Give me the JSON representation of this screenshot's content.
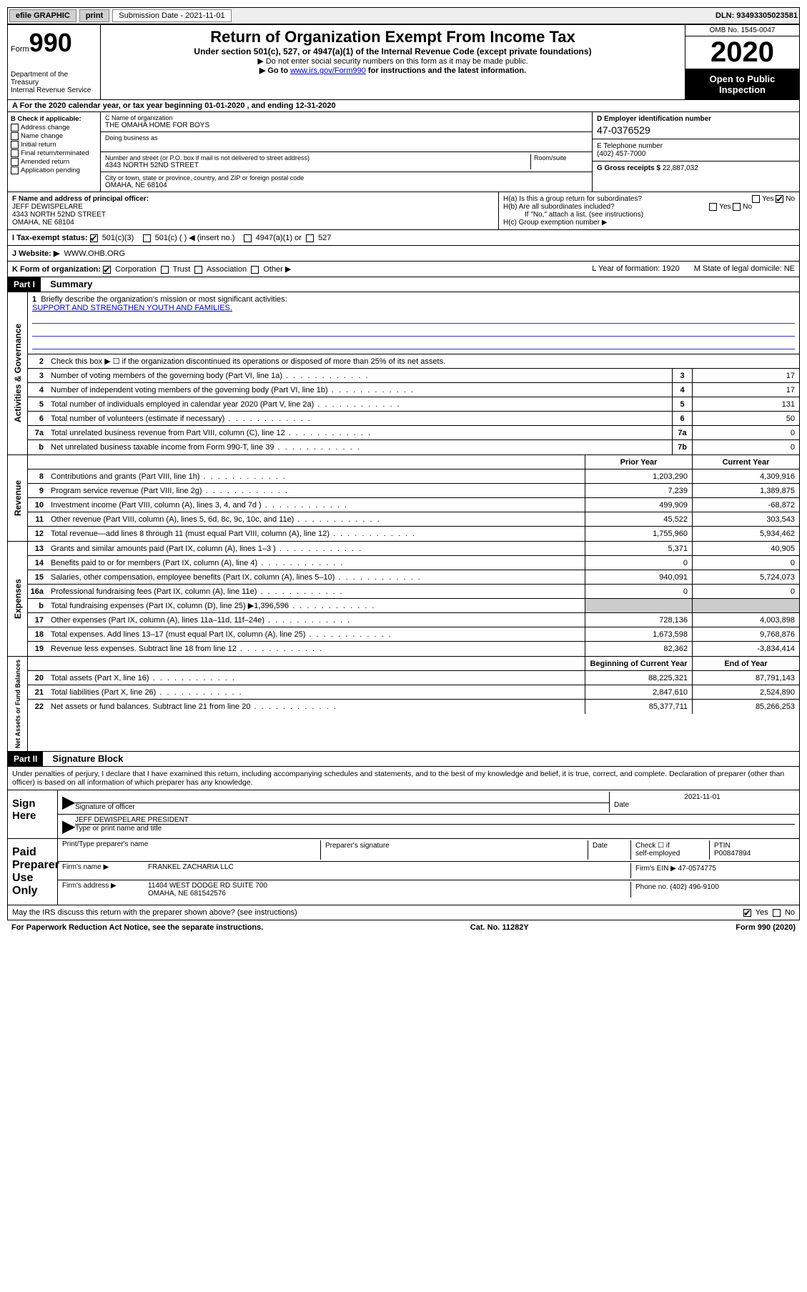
{
  "toolbar": {
    "efile": "efile GRAPHIC",
    "print": "print",
    "subdate_label": "Submission Date - 2021-11-01",
    "dln": "DLN: 93493305023581"
  },
  "header": {
    "form_prefix": "Form",
    "form_num": "990",
    "dept": "Department of the Treasury",
    "irs": "Internal Revenue Service",
    "title": "Return of Organization Exempt From Income Tax",
    "sub1": "Under section 501(c), 527, or 4947(a)(1) of the Internal Revenue Code (except private foundations)",
    "sub2": "▶ Do not enter social security numbers on this form as it may be made public.",
    "sub3a": "▶ Go to ",
    "sub3link": "www.irs.gov/Form990",
    "sub3b": " for instructions and the latest information.",
    "omb": "OMB No. 1545-0047",
    "year": "2020",
    "open": "Open to Public Inspection"
  },
  "rowA": "A For the 2020 calendar year, or tax year beginning 01-01-2020   , and ending 12-31-2020",
  "sectionB": {
    "label": "B Check if applicable:",
    "opts": [
      "Address change",
      "Name change",
      "Initial return",
      "Final return/terminated",
      "Amended return",
      "Application pending"
    ]
  },
  "sectionC": {
    "name_lbl": "C Name of organization",
    "name": "THE OMAHA HOME FOR BOYS",
    "dba_lbl": "Doing business as",
    "addr_lbl": "Number and street (or P.O. box if mail is not delivered to street address)",
    "room_lbl": "Room/suite",
    "addr": "4343 NORTH 52ND STREET",
    "city_lbl": "City or town, state or province, country, and ZIP or foreign postal code",
    "city": "OMAHA, NE  68104"
  },
  "sectionD": {
    "lbl": "D Employer identification number",
    "val": "47-0376529"
  },
  "sectionE": {
    "lbl": "E Telephone number",
    "val": "(402) 457-7000"
  },
  "sectionG": {
    "lbl": "G Gross receipts $",
    "val": "22,887,032"
  },
  "sectionF": {
    "lbl": "F Name and address of principal officer:",
    "name": "JEFF DEWISPELARE",
    "addr1": "4343 NORTH 52ND STREET",
    "addr2": "OMAHA, NE  68104"
  },
  "sectionH": {
    "a": "H(a)  Is this a group return for subordinates?",
    "b": "H(b)  Are all subordinates included?",
    "bnote": "If \"No,\" attach a list. (see instructions)",
    "c": "H(c)  Group exemption number ▶"
  },
  "rowI": {
    "lbl": "I   Tax-exempt status:",
    "o1": "501(c)(3)",
    "o2": "501(c) (   ) ◀ (insert no.)",
    "o3": "4947(a)(1) or",
    "o4": "527"
  },
  "rowJ": {
    "lbl": "J   Website: ▶",
    "val": "WWW.OHB.ORG"
  },
  "rowK": {
    "lbl": "K Form of organization:",
    "o1": "Corporation",
    "o2": "Trust",
    "o3": "Association",
    "o4": "Other ▶",
    "L": "L Year of formation: 1920",
    "M": "M State of legal domicile: NE"
  },
  "part1": {
    "hdr": "Part I",
    "title": "Summary",
    "q1": "Briefly describe the organization's mission or most significant activities:",
    "mission": "SUPPORT AND STRENGTHEN YOUTH AND FAMILIES.",
    "q2": "Check this box ▶ ☐  if the organization discontinued its operations or disposed of more than 25% of its net assets.",
    "lines_gov": [
      {
        "n": "3",
        "d": "Number of voting members of the governing body (Part VI, line 1a)",
        "b": "3",
        "v": "17"
      },
      {
        "n": "4",
        "d": "Number of independent voting members of the governing body (Part VI, line 1b)",
        "b": "4",
        "v": "17"
      },
      {
        "n": "5",
        "d": "Total number of individuals employed in calendar year 2020 (Part V, line 2a)",
        "b": "5",
        "v": "131"
      },
      {
        "n": "6",
        "d": "Total number of volunteers (estimate if necessary)",
        "b": "6",
        "v": "50"
      },
      {
        "n": "7a",
        "d": "Total unrelated business revenue from Part VIII, column (C), line 12",
        "b": "7a",
        "v": "0"
      },
      {
        "n": "b",
        "d": "Net unrelated business taxable income from Form 990-T, line 39",
        "b": "7b",
        "v": "0"
      }
    ],
    "col_prior": "Prior Year",
    "col_current": "Current Year",
    "lines_rev": [
      {
        "n": "8",
        "d": "Contributions and grants (Part VIII, line 1h)",
        "p": "1,203,290",
        "c": "4,309,916"
      },
      {
        "n": "9",
        "d": "Program service revenue (Part VIII, line 2g)",
        "p": "7,239",
        "c": "1,389,875"
      },
      {
        "n": "10",
        "d": "Investment income (Part VIII, column (A), lines 3, 4, and 7d )",
        "p": "499,909",
        "c": "-68,872"
      },
      {
        "n": "11",
        "d": "Other revenue (Part VIII, column (A), lines 5, 6d, 8c, 9c, 10c, and 11e)",
        "p": "45,522",
        "c": "303,543"
      },
      {
        "n": "12",
        "d": "Total revenue—add lines 8 through 11 (must equal Part VIII, column (A), line 12)",
        "p": "1,755,960",
        "c": "5,934,462"
      }
    ],
    "lines_exp": [
      {
        "n": "13",
        "d": "Grants and similar amounts paid (Part IX, column (A), lines 1–3 )",
        "p": "5,371",
        "c": "40,905"
      },
      {
        "n": "14",
        "d": "Benefits paid to or for members (Part IX, column (A), line 4)",
        "p": "0",
        "c": "0"
      },
      {
        "n": "15",
        "d": "Salaries, other compensation, employee benefits (Part IX, column (A), lines 5–10)",
        "p": "940,091",
        "c": "5,724,073"
      },
      {
        "n": "16a",
        "d": "Professional fundraising fees (Part IX, column (A), line 11e)",
        "p": "0",
        "c": "0"
      },
      {
        "n": "b",
        "d": "Total fundraising expenses (Part IX, column (D), line 25) ▶1,396,596",
        "p": "",
        "c": "",
        "shade": true
      },
      {
        "n": "17",
        "d": "Other expenses (Part IX, column (A), lines 11a–11d, 11f–24e)",
        "p": "728,136",
        "c": "4,003,898"
      },
      {
        "n": "18",
        "d": "Total expenses. Add lines 13–17 (must equal Part IX, column (A), line 25)",
        "p": "1,673,598",
        "c": "9,768,876"
      },
      {
        "n": "19",
        "d": "Revenue less expenses. Subtract line 18 from line 12",
        "p": "82,362",
        "c": "-3,834,414"
      }
    ],
    "col_beg": "Beginning of Current Year",
    "col_end": "End of Year",
    "lines_net": [
      {
        "n": "20",
        "d": "Total assets (Part X, line 16)",
        "p": "88,225,321",
        "c": "87,791,143"
      },
      {
        "n": "21",
        "d": "Total liabilities (Part X, line 26)",
        "p": "2,847,610",
        "c": "2,524,890"
      },
      {
        "n": "22",
        "d": "Net assets or fund balances. Subtract line 21 from line 20",
        "p": "85,377,711",
        "c": "85,266,253"
      }
    ],
    "side_gov": "Activities & Governance",
    "side_rev": "Revenue",
    "side_exp": "Expenses",
    "side_net": "Net Assets or Fund Balances"
  },
  "part2": {
    "hdr": "Part II",
    "title": "Signature Block",
    "perjury": "Under penalties of perjury, I declare that I have examined this return, including accompanying schedules and statements, and to the best of my knowledge and belief, it is true, correct, and complete. Declaration of preparer (other than officer) is based on all information of which preparer has any knowledge."
  },
  "sign": {
    "here": "Sign Here",
    "sig_lbl": "Signature of officer",
    "date_lbl": "Date",
    "date": "2021-11-01",
    "name": "JEFF DEWISPELARE PRESIDENT",
    "name_lbl": "Type or print name and title"
  },
  "paid": {
    "lbl": "Paid Preparer Use Only",
    "h1": "Print/Type preparer's name",
    "h2": "Preparer's signature",
    "h3": "Date",
    "h4a": "Check ☐ if",
    "h4b": "self-employed",
    "h5a": "PTIN",
    "h5b": "P00847894",
    "firm_lbl": "Firm's name    ▶",
    "firm": "FRANKEL ZACHARIA LLC",
    "ein_lbl": "Firm's EIN ▶",
    "ein": "47-0574775",
    "addr_lbl": "Firm's address ▶",
    "addr1": "11404 WEST DODGE RD SUITE 700",
    "addr2": "OMAHA, NE  681542576",
    "phone_lbl": "Phone no.",
    "phone": "(402) 496-9100"
  },
  "discuss": "May the IRS discuss this return with the preparer shown above? (see instructions)",
  "footer": {
    "l": "For Paperwork Reduction Act Notice, see the separate instructions.",
    "c": "Cat. No. 11282Y",
    "r": "Form 990 (2020)"
  },
  "yn": {
    "yes": "Yes",
    "no": "No"
  }
}
